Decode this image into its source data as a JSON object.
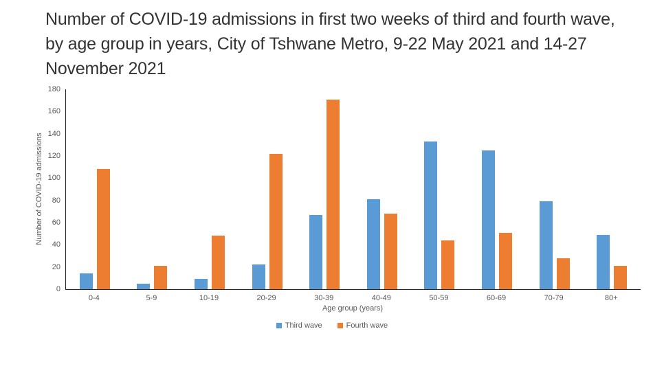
{
  "chart_data": {
    "type": "bar",
    "title": "Number of COVID-19 admissions in first two weeks of third and fourth wave, by age group in years, City of Tshwane Metro, 9-22 May 2021 and 14-27 November 2021",
    "xlabel": "Age group (years)",
    "ylabel": "Number of COVID-19 admissions",
    "categories": [
      "0-4",
      "5-9",
      "10-19",
      "20-29",
      "30-39",
      "40-49",
      "50-59",
      "60-69",
      "70-79",
      "80+"
    ],
    "series": [
      {
        "name": "Third wave",
        "color": "#5B9BD5",
        "values": [
          14,
          5,
          9,
          22,
          67,
          81,
          133,
          125,
          79,
          49
        ]
      },
      {
        "name": "Fourth wave",
        "color": "#ED7D31",
        "values": [
          108,
          21,
          48,
          122,
          171,
          68,
          44,
          51,
          28,
          21
        ]
      }
    ],
    "ylim": [
      0,
      180
    ],
    "yticks": [
      0,
      20,
      40,
      60,
      80,
      100,
      120,
      140,
      160,
      180
    ],
    "grid": false,
    "legend_position": "bottom"
  }
}
